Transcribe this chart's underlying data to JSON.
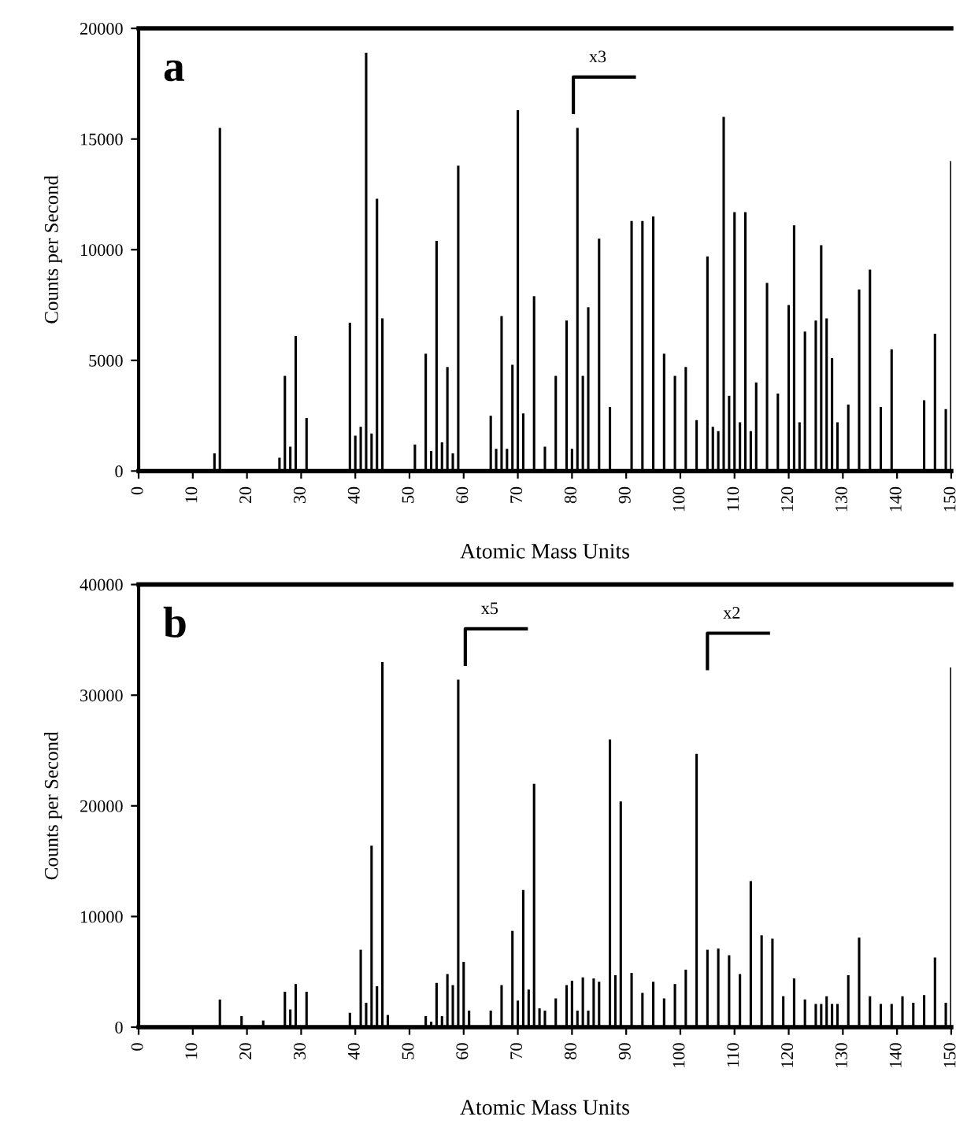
{
  "chart_data": [
    {
      "type": "bar",
      "title": "a",
      "xlabel": "Atomic Mass Units",
      "ylabel": "Counts per Second",
      "color": "#000000",
      "x": [
        14,
        15,
        26,
        27,
        28,
        29,
        31,
        39,
        40,
        41,
        42,
        43,
        44,
        45,
        51,
        53,
        54,
        55,
        56,
        57,
        58,
        59,
        65,
        66,
        67,
        68,
        69,
        70,
        71,
        73,
        75,
        77,
        79,
        80,
        81,
        82,
        83,
        85,
        87,
        91,
        93,
        95,
        97,
        99,
        101,
        103,
        105,
        106,
        107,
        108,
        109,
        110,
        111,
        112,
        113,
        114,
        116,
        118,
        120,
        121,
        122,
        123,
        125,
        126,
        127,
        128,
        129,
        131,
        133,
        135,
        137,
        139,
        145,
        147,
        149,
        150
      ],
      "values": [
        800,
        15500,
        600,
        4300,
        1100,
        6100,
        2400,
        6700,
        1600,
        2000,
        18900,
        1700,
        12300,
        6900,
        1200,
        5300,
        900,
        10400,
        1300,
        4700,
        800,
        13800,
        2500,
        1000,
        7000,
        1000,
        4800,
        16300,
        2600,
        7900,
        1100,
        4300,
        6800,
        1000,
        15500,
        4300,
        7400,
        10500,
        2900,
        11300,
        11300,
        11500,
        5300,
        4300,
        4700,
        2300,
        9700,
        2000,
        1800,
        16000,
        3400,
        11700,
        2200,
        11700,
        1800,
        4000,
        8500,
        3500,
        7500,
        11100,
        2200,
        6300,
        6800,
        10200,
        6900,
        5100,
        2200,
        3000,
        8200,
        9100,
        2900,
        5500,
        3200,
        6200,
        2800,
        14000
      ],
      "xlim": [
        0,
        150
      ],
      "xticks": [
        0,
        10,
        20,
        30,
        40,
        50,
        60,
        70,
        80,
        90,
        100,
        110,
        120,
        130,
        140,
        150
      ],
      "ylim": [
        0,
        20000
      ],
      "yticks": [
        0,
        5000,
        10000,
        15000,
        20000
      ],
      "grid": false,
      "legend": false,
      "annotations": [
        "x3"
      ]
    },
    {
      "type": "bar",
      "title": "b",
      "xlabel": "Atomic Mass Units",
      "ylabel": "Counts per Second",
      "color": "#000000",
      "x": [
        15,
        19,
        23,
        27,
        28,
        29,
        31,
        39,
        41,
        42,
        43,
        44,
        45,
        46,
        53,
        54,
        55,
        56,
        57,
        58,
        59,
        60,
        61,
        65,
        67,
        69,
        70,
        71,
        72,
        73,
        74,
        75,
        77,
        79,
        80,
        81,
        82,
        83,
        84,
        85,
        87,
        88,
        89,
        91,
        93,
        95,
        97,
        99,
        101,
        103,
        105,
        107,
        109,
        111,
        113,
        115,
        117,
        119,
        121,
        123,
        125,
        126,
        127,
        128,
        129,
        131,
        133,
        135,
        137,
        139,
        141,
        143,
        145,
        147,
        149,
        150
      ],
      "values": [
        2500,
        1000,
        600,
        3200,
        1600,
        3900,
        3200,
        1300,
        7000,
        2200,
        16400,
        3700,
        33000,
        1100,
        1000,
        500,
        4000,
        1000,
        4800,
        3800,
        31400,
        5900,
        1500,
        1500,
        3800,
        8700,
        2400,
        12400,
        3400,
        22000,
        1700,
        1500,
        2600,
        3800,
        4200,
        1500,
        4500,
        1500,
        4400,
        4100,
        26000,
        4700,
        20400,
        4900,
        3100,
        4100,
        2600,
        3900,
        5200,
        24700,
        7000,
        7100,
        6500,
        4800,
        13200,
        8300,
        8000,
        2800,
        4400,
        2500,
        2100,
        2100,
        2800,
        2100,
        2100,
        4700,
        8100,
        2800,
        2100,
        2100,
        2800,
        2200,
        2900,
        6300,
        2200,
        32500
      ],
      "xlim": [
        0,
        150
      ],
      "xticks": [
        0,
        10,
        20,
        30,
        40,
        50,
        60,
        70,
        80,
        90,
        100,
        110,
        120,
        130,
        140,
        150
      ],
      "ylim": [
        0,
        40000
      ],
      "yticks": [
        0,
        10000,
        20000,
        30000,
        40000
      ],
      "grid": false,
      "legend": false,
      "annotations": [
        "x5",
        "x2"
      ]
    }
  ]
}
